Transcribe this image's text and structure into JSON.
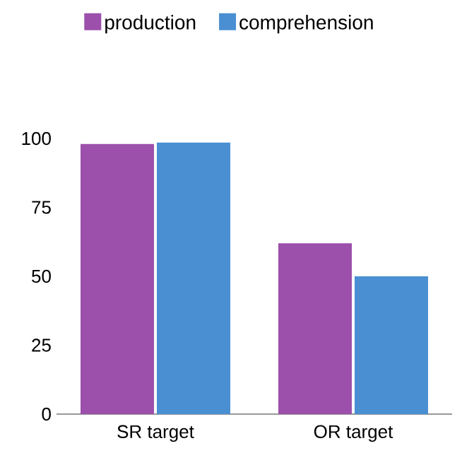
{
  "chart_data": {
    "type": "bar",
    "categories": [
      "SR target",
      "OR target"
    ],
    "series": [
      {
        "name": "production",
        "color": "#9c4fab",
        "values": [
          98,
          62
        ]
      },
      {
        "name": "comprehension",
        "color": "#4a8fd2",
        "values": [
          98.5,
          50
        ]
      }
    ],
    "ylim": [
      0,
      100
    ],
    "yticks": [
      0,
      25,
      50,
      75,
      100
    ],
    "legend": "top"
  }
}
